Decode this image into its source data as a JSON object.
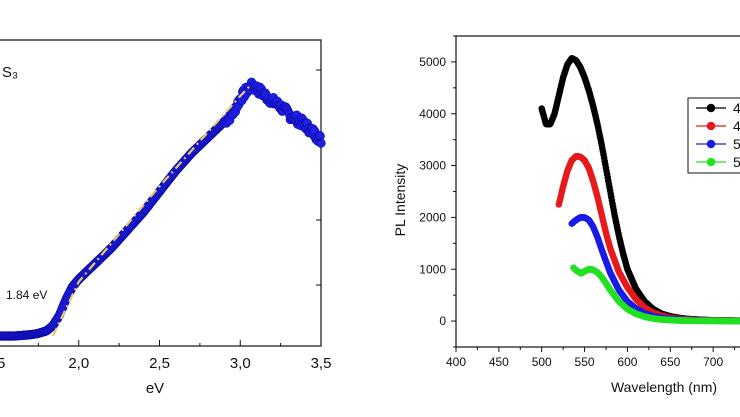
{
  "chart_data": [
    {
      "type": "scatter",
      "title": "",
      "xlabel": "eV",
      "ylabel": "",
      "xlim": [
        1.5,
        3.5
      ],
      "x_ticks": [
        "2,0",
        "2,5",
        "3,0",
        "3,5"
      ],
      "left_edge_tick": "5",
      "annotations": [
        "S₃",
        "1.84 eV"
      ],
      "grid": false,
      "series": [
        {
          "color": "#1f1fe6",
          "x": [
            1.5,
            1.6,
            1.7,
            1.75,
            1.8,
            1.84,
            1.88,
            1.92,
            1.96,
            2.0,
            2.1,
            2.2,
            2.3,
            2.4,
            2.5,
            2.6,
            2.7,
            2.8,
            2.9,
            2.95,
            3.0,
            3.05,
            3.08,
            3.12,
            3.16,
            3.2,
            3.25,
            3.3,
            3.35,
            3.4,
            3.45,
            3.5
          ],
          "y": [
            0.0,
            0.0,
            0.005,
            0.01,
            0.02,
            0.04,
            0.08,
            0.14,
            0.19,
            0.22,
            0.28,
            0.34,
            0.41,
            0.48,
            0.56,
            0.64,
            0.71,
            0.77,
            0.83,
            0.86,
            0.92,
            0.96,
            0.97,
            0.95,
            0.93,
            0.91,
            0.89,
            0.86,
            0.84,
            0.82,
            0.79,
            0.76
          ]
        },
        {
          "color": "#e8c96a",
          "line_style": "dash-dot",
          "x": [
            1.84,
            2.0,
            2.5,
            3.0,
            3.06
          ],
          "y": [
            0.0,
            0.21,
            0.58,
            0.93,
            0.97
          ]
        }
      ]
    },
    {
      "type": "scatter",
      "title": "",
      "xlabel": "Wavelength (nm)",
      "ylabel": "PL Intensity",
      "xlim": [
        400,
        750
      ],
      "ylim": [
        -500,
        5500
      ],
      "x_ticks": [
        400,
        450,
        500,
        550,
        600,
        650,
        700
      ],
      "y_ticks": [
        0,
        1000,
        2000,
        3000,
        4000,
        5000
      ],
      "grid": false,
      "legend_position": "right",
      "series": [
        {
          "name": "4",
          "color": "#000000",
          "x": [
            500,
            505,
            510,
            515,
            520,
            525,
            530,
            535,
            540,
            545,
            550,
            555,
            560,
            565,
            570,
            575,
            580,
            585,
            590,
            595,
            600,
            610,
            620,
            630,
            640,
            650,
            660,
            670,
            680,
            690,
            700,
            720,
            740
          ],
          "y": [
            4100,
            3800,
            3800,
            4000,
            4350,
            4700,
            4950,
            5070,
            5030,
            4900,
            4700,
            4450,
            4150,
            3800,
            3400,
            2950,
            2500,
            2050,
            1650,
            1300,
            1000,
            620,
            380,
            230,
            140,
            90,
            60,
            40,
            30,
            20,
            15,
            10,
            5
          ]
        },
        {
          "name": "4",
          "color": "#e61a1a",
          "x": [
            520,
            525,
            530,
            535,
            540,
            545,
            550,
            555,
            560,
            565,
            570,
            575,
            580,
            590,
            600,
            610,
            620,
            630,
            640,
            650,
            660,
            680,
            700,
            720,
            740
          ],
          "y": [
            2250,
            2600,
            2900,
            3100,
            3180,
            3170,
            3100,
            2950,
            2700,
            2400,
            2050,
            1700,
            1400,
            950,
            650,
            420,
            260,
            160,
            100,
            60,
            40,
            20,
            12,
            8,
            5
          ]
        },
        {
          "name": "5",
          "color": "#1a1ae6",
          "x": [
            535,
            540,
            545,
            550,
            555,
            560,
            565,
            570,
            575,
            580,
            590,
            600,
            610,
            620,
            630,
            640,
            650,
            660,
            680,
            700,
            720,
            740
          ],
          "y": [
            1880,
            1950,
            2000,
            2000,
            1950,
            1820,
            1620,
            1380,
            1150,
            930,
            600,
            380,
            240,
            150,
            95,
            60,
            40,
            25,
            12,
            8,
            5,
            3
          ]
        },
        {
          "name": "5",
          "color": "#22e022",
          "x": [
            537,
            540,
            543,
            546,
            550,
            555,
            560,
            565,
            570,
            575,
            580,
            590,
            600,
            610,
            620,
            630,
            640,
            650,
            660,
            680,
            700,
            720,
            740
          ],
          "y": [
            1030,
            980,
            950,
            920,
            960,
            1000,
            990,
            940,
            850,
            730,
            600,
            380,
            230,
            140,
            85,
            50,
            30,
            20,
            12,
            6,
            4,
            2,
            1
          ]
        }
      ]
    }
  ]
}
